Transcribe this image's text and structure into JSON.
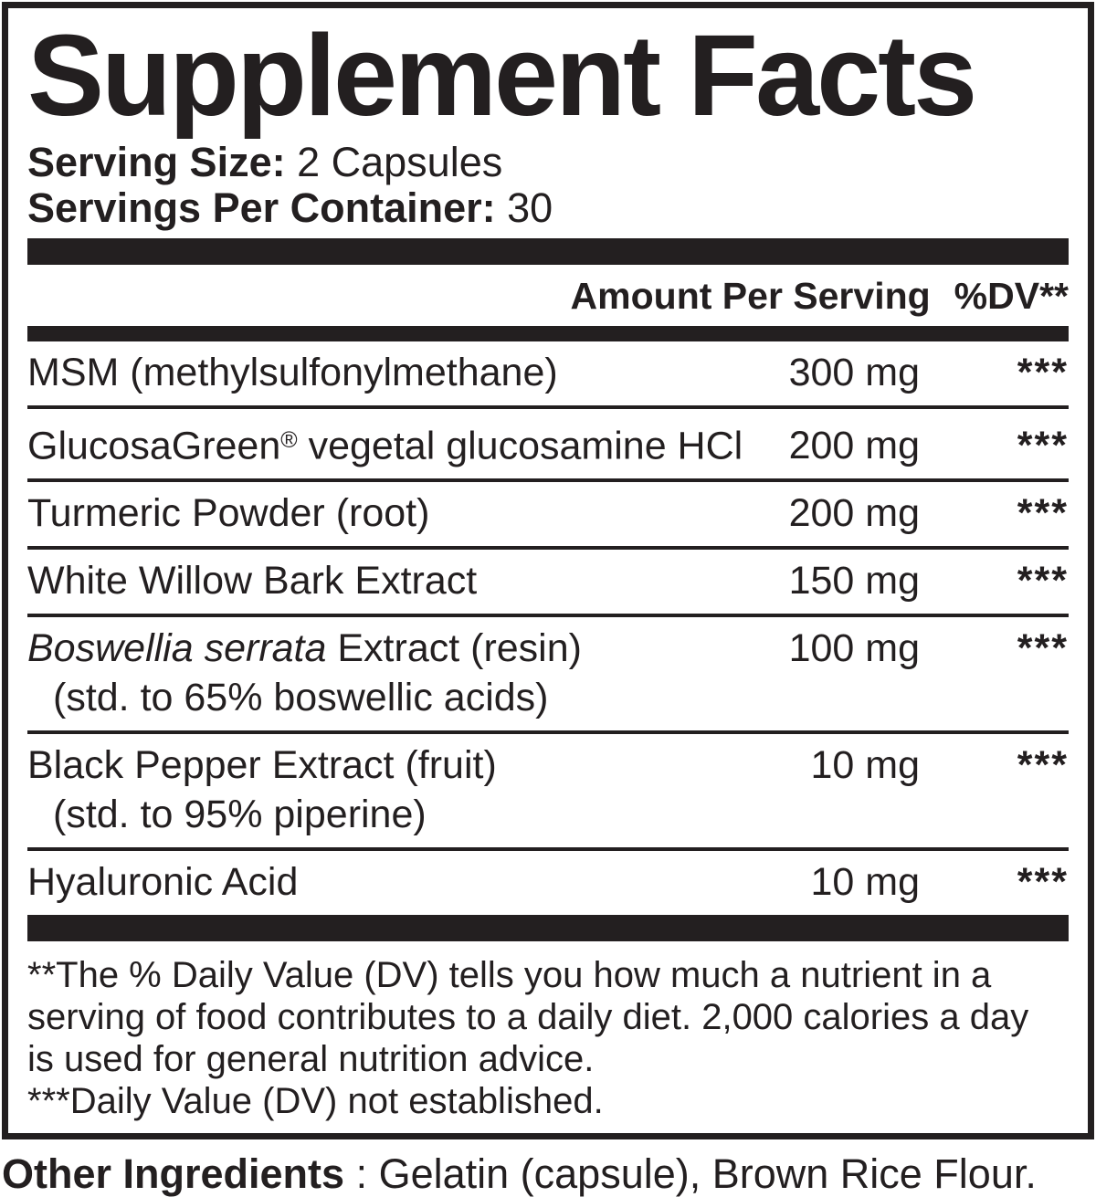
{
  "colors": {
    "ink": "#231f20",
    "background": "#ffffff"
  },
  "title": "Supplement Facts",
  "serving": {
    "size_label": "Serving Size:",
    "size_value": "2 Capsules",
    "container_label": "Servings Per Container:",
    "container_value": "30"
  },
  "table": {
    "amount_header": "Amount Per Serving",
    "dv_header": "%DV**",
    "rows": [
      {
        "name": [
          {
            "text": "MSM (methylsulfonylmethane)",
            "style": "normal"
          }
        ],
        "amount": "300 mg",
        "dv": "***"
      },
      {
        "name": [
          {
            "text": "GlucosaGreen",
            "style": "normal"
          },
          {
            "text": "®",
            "style": "sup"
          },
          {
            "text": " vegetal glucosamine HCl",
            "style": "normal"
          }
        ],
        "amount": "200 mg",
        "dv": "***"
      },
      {
        "name": [
          {
            "text": "Turmeric Powder (root)",
            "style": "normal"
          }
        ],
        "amount": "200 mg",
        "dv": "***"
      },
      {
        "name": [
          {
            "text": "White Willow Bark Extract",
            "style": "normal"
          }
        ],
        "amount": "150 mg",
        "dv": "***"
      },
      {
        "name": [
          {
            "text": "Boswellia serrata",
            "style": "italic"
          },
          {
            "text": " Extract (resin)",
            "style": "normal"
          }
        ],
        "detail": "(std. to 65% boswellic acids)",
        "amount": "100 mg",
        "dv": "***"
      },
      {
        "name": [
          {
            "text": "Black Pepper Extract (fruit)",
            "style": "normal"
          }
        ],
        "detail": "(std. to 95% piperine)",
        "amount": "10 mg",
        "dv": "***"
      },
      {
        "name": [
          {
            "text": "Hyaluronic Acid",
            "style": "normal"
          }
        ],
        "amount": "10 mg",
        "dv": "***"
      }
    ]
  },
  "footnotes": {
    "lines": [
      "**The % Daily Value (DV) tells you how much a nutrient in a",
      "serving of food contributes to a daily diet. 2,000 calories a day",
      "is used for general nutrition advice.",
      "***Daily Value (DV) not established."
    ]
  },
  "other_ingredients": {
    "label": "Other Ingredients",
    "text": ": Gelatin (capsule), Brown Rice Flour."
  }
}
